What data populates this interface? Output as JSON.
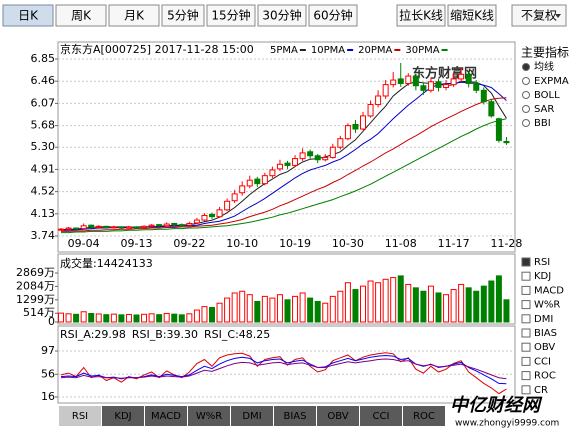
{
  "toolbar": {
    "periods": [
      "日K",
      "周K",
      "月K",
      "5分钟",
      "15分钟",
      "30分钟",
      "60分钟"
    ],
    "zoom": [
      "拉长K线",
      "缩短K线"
    ],
    "adjust": "不复权"
  },
  "sidebar": {
    "title": "主要指标",
    "main_indicators": [
      "均线",
      "EXPMA",
      "BOLL",
      "SAR",
      "BBI"
    ],
    "sub_indicators": [
      "RSI",
      "KDJ",
      "MACD",
      "W%R",
      "DMI",
      "BIAS",
      "OBV",
      "CCI",
      "ROC",
      "CR"
    ]
  },
  "tabs": [
    "RSI",
    "KDJ",
    "MACD",
    "W%R",
    "DMI",
    "BIAS",
    "OBV",
    "CCI",
    "ROC"
  ],
  "watermarks": [
    "东方财富网",
    "中亿财经网",
    "www.zhongyi9999.com"
  ],
  "chart_data": [
    {
      "type": "candlestick",
      "title": "京东方A[000725] 2017-11-28 15:00",
      "up_color": "#ff0000",
      "down_color": "#008000",
      "grid": true,
      "categories": [
        null,
        null,
        null,
        "09-04",
        null,
        null,
        null,
        null,
        null,
        null,
        "09-13",
        null,
        null,
        null,
        null,
        null,
        null,
        "09-22",
        null,
        null,
        null,
        null,
        null,
        null,
        "10-10",
        null,
        null,
        null,
        null,
        null,
        null,
        "10-19",
        null,
        null,
        null,
        null,
        null,
        null,
        "10-30",
        null,
        null,
        null,
        null,
        null,
        null,
        "11-08",
        null,
        null,
        null,
        null,
        null,
        null,
        "11-17",
        null,
        null,
        null,
        null,
        null,
        null,
        "11-28"
      ],
      "ohlc": [
        [
          3.85,
          3.88,
          3.83,
          3.86
        ],
        [
          3.86,
          3.9,
          3.84,
          3.88
        ],
        [
          3.88,
          3.89,
          3.85,
          3.87
        ],
        [
          3.87,
          3.96,
          3.86,
          3.92
        ],
        [
          3.93,
          3.94,
          3.88,
          3.9
        ],
        [
          3.9,
          3.93,
          3.88,
          3.91
        ],
        [
          3.91,
          3.92,
          3.87,
          3.89
        ],
        [
          3.89,
          3.92,
          3.87,
          3.9
        ],
        [
          3.9,
          3.91,
          3.86,
          3.88
        ],
        [
          3.88,
          3.92,
          3.87,
          3.9
        ],
        [
          3.9,
          3.91,
          3.87,
          3.89
        ],
        [
          3.89,
          3.93,
          3.88,
          3.91
        ],
        [
          3.91,
          3.95,
          3.9,
          3.93
        ],
        [
          3.94,
          3.95,
          3.9,
          3.92
        ],
        [
          3.92,
          3.98,
          3.91,
          3.95
        ],
        [
          3.96,
          3.97,
          3.92,
          3.94
        ],
        [
          3.94,
          3.96,
          3.91,
          3.93
        ],
        [
          3.93,
          3.99,
          3.92,
          3.96
        ],
        [
          3.97,
          4.06,
          3.95,
          4.02
        ],
        [
          4.02,
          4.14,
          4.0,
          4.1
        ],
        [
          4.12,
          4.15,
          4.04,
          4.08
        ],
        [
          4.08,
          4.25,
          4.06,
          4.2
        ],
        [
          4.2,
          4.4,
          4.18,
          4.35
        ],
        [
          4.36,
          4.55,
          4.32,
          4.48
        ],
        [
          4.5,
          4.7,
          4.45,
          4.62
        ],
        [
          4.62,
          4.8,
          4.58,
          4.72
        ],
        [
          4.74,
          4.78,
          4.6,
          4.66
        ],
        [
          4.66,
          4.85,
          4.63,
          4.8
        ],
        [
          4.8,
          4.96,
          4.76,
          4.9
        ],
        [
          4.92,
          5.08,
          4.88,
          5.0
        ],
        [
          5.02,
          5.06,
          4.92,
          4.98
        ],
        [
          4.98,
          5.16,
          4.95,
          5.1
        ],
        [
          5.1,
          5.28,
          5.06,
          5.2
        ],
        [
          5.22,
          5.26,
          5.1,
          5.15
        ],
        [
          5.15,
          5.18,
          5.02,
          5.08
        ],
        [
          5.08,
          5.18,
          5.05,
          5.12
        ],
        [
          5.12,
          5.36,
          5.1,
          5.3
        ],
        [
          5.3,
          5.5,
          5.26,
          5.45
        ],
        [
          5.45,
          5.72,
          5.42,
          5.68
        ],
        [
          5.7,
          5.78,
          5.55,
          5.62
        ],
        [
          5.62,
          5.92,
          5.6,
          5.85
        ],
        [
          5.85,
          6.12,
          5.82,
          6.05
        ],
        [
          6.05,
          6.3,
          6.0,
          6.2
        ],
        [
          6.2,
          6.48,
          6.15,
          6.4
        ],
        [
          6.4,
          6.62,
          6.35,
          6.48
        ],
        [
          6.5,
          6.78,
          6.36,
          6.42
        ],
        [
          6.42,
          6.6,
          6.38,
          6.55
        ],
        [
          6.55,
          6.58,
          6.3,
          6.38
        ],
        [
          6.38,
          6.42,
          6.22,
          6.3
        ],
        [
          6.3,
          6.52,
          6.26,
          6.45
        ],
        [
          6.45,
          6.5,
          6.28,
          6.35
        ],
        [
          6.35,
          6.48,
          6.3,
          6.4
        ],
        [
          6.4,
          6.62,
          6.36,
          6.5
        ],
        [
          6.5,
          6.7,
          6.45,
          6.58
        ],
        [
          6.58,
          6.62,
          6.35,
          6.42
        ],
        [
          6.42,
          6.48,
          6.25,
          6.3
        ],
        [
          6.3,
          6.35,
          6.05,
          6.1
        ],
        [
          6.1,
          6.15,
          5.82,
          5.85
        ],
        [
          5.8,
          5.82,
          5.38,
          5.42
        ],
        [
          5.4,
          5.48,
          5.34,
          5.38
        ]
      ],
      "series": [
        {
          "name": "5PMA",
          "color": "#202020",
          "values": [
            3.85,
            3.86,
            3.86,
            3.88,
            3.89,
            3.9,
            3.9,
            3.9,
            3.9,
            3.9,
            3.89,
            3.9,
            3.9,
            3.91,
            3.92,
            3.93,
            3.93,
            3.94,
            3.96,
            3.99,
            4.02,
            4.07,
            4.15,
            4.24,
            4.35,
            4.47,
            4.57,
            4.66,
            4.74,
            4.82,
            4.87,
            4.96,
            5.04,
            5.09,
            5.1,
            5.13,
            5.17,
            5.22,
            5.33,
            5.43,
            5.58,
            5.73,
            5.88,
            6.02,
            6.2,
            6.31,
            6.41,
            6.45,
            6.43,
            6.42,
            6.41,
            6.38,
            6.4,
            6.46,
            6.45,
            6.44,
            6.38,
            6.25,
            6.02,
            5.81
          ]
        },
        {
          "name": "10PMA",
          "color": "#0000cc",
          "values": [
            3.84,
            3.84,
            3.85,
            3.86,
            3.87,
            3.88,
            3.88,
            3.89,
            3.89,
            3.89,
            3.9,
            3.9,
            3.9,
            3.9,
            3.91,
            3.91,
            3.92,
            3.92,
            3.93,
            3.96,
            3.98,
            4.0,
            4.04,
            4.09,
            4.17,
            4.25,
            4.32,
            4.4,
            4.49,
            4.58,
            4.67,
            4.76,
            4.84,
            4.9,
            4.94,
            4.98,
            5.04,
            5.09,
            5.17,
            5.26,
            5.36,
            5.44,
            5.54,
            5.67,
            5.8,
            5.92,
            6.04,
            6.14,
            6.25,
            6.35,
            6.4,
            6.42,
            6.42,
            6.44,
            6.43,
            6.42,
            6.39,
            6.35,
            6.24,
            6.12
          ]
        },
        {
          "name": "20PMA",
          "color": "#cc0000",
          "values": [
            3.82,
            3.82,
            3.83,
            3.83,
            3.84,
            3.84,
            3.85,
            3.85,
            3.86,
            3.86,
            3.87,
            3.87,
            3.88,
            3.88,
            3.89,
            3.89,
            3.9,
            3.9,
            3.91,
            3.92,
            3.93,
            3.95,
            3.97,
            4.0,
            4.03,
            4.08,
            4.12,
            4.16,
            4.21,
            4.27,
            4.32,
            4.38,
            4.44,
            4.5,
            4.56,
            4.61,
            4.68,
            4.74,
            4.82,
            4.89,
            4.97,
            5.04,
            5.12,
            5.2,
            5.27,
            5.35,
            5.43,
            5.5,
            5.58,
            5.66,
            5.73,
            5.8,
            5.86,
            5.93,
            5.99,
            6.05,
            6.1,
            6.14,
            6.16,
            6.17
          ]
        },
        {
          "name": "30PMA",
          "color": "#008000",
          "values": [
            3.8,
            3.8,
            3.81,
            3.81,
            3.82,
            3.82,
            3.82,
            3.83,
            3.83,
            3.84,
            3.84,
            3.85,
            3.85,
            3.86,
            3.86,
            3.87,
            3.87,
            3.88,
            3.88,
            3.89,
            3.9,
            3.91,
            3.92,
            3.94,
            3.96,
            3.98,
            4.01,
            4.04,
            4.07,
            4.11,
            4.14,
            4.18,
            4.22,
            4.26,
            4.3,
            4.34,
            4.38,
            4.43,
            4.48,
            4.53,
            4.59,
            4.65,
            4.72,
            4.79,
            4.86,
            4.93,
            5.0,
            5.07,
            5.14,
            5.21,
            5.28,
            5.35,
            5.42,
            5.49,
            5.55,
            5.62,
            5.68,
            5.73,
            5.77,
            5.8
          ]
        }
      ],
      "ylim": [
        3.74,
        6.85
      ],
      "yticks": [
        3.74,
        4.13,
        4.52,
        4.91,
        {
          "value": 5.3,
          "label": "5.30"
        },
        5.68,
        6.07,
        6.46,
        6.85
      ]
    },
    {
      "type": "bar",
      "title": "成交量:14424133",
      "values": [
        520,
        480,
        450,
        600,
        500,
        470,
        430,
        460,
        420,
        440,
        410,
        450,
        480,
        430,
        500,
        460,
        420,
        480,
        700,
        900,
        850,
        1100,
        1400,
        1700,
        1800,
        1600,
        1200,
        1500,
        1400,
        1600,
        1300,
        1500,
        1700,
        1400,
        1200,
        1100,
        1500,
        1800,
        2300,
        1900,
        2100,
        2400,
        2300,
        2500,
        2600,
        2700,
        2200,
        2000,
        1800,
        2100,
        1700,
        1600,
        1900,
        2200,
        2000,
        1800,
        2100,
        2400,
        2700,
        1300
      ],
      "ylim": [
        0,
        2869
      ],
      "yticks": [
        0,
        {
          "value": 514,
          "label": "514万"
        },
        {
          "value": 1299,
          "label": "1299万"
        },
        {
          "value": 2084,
          "label": "2084万"
        },
        {
          "value": 2869,
          "label": "2869万"
        }
      ]
    },
    {
      "type": "line",
      "legend_labels": [
        "RSI_A:29.98",
        "RSI_B:39.30",
        "RSI_C:48.25"
      ],
      "series": [
        {
          "name": "RSI_A",
          "color": "#e00000",
          "values": [
            55,
            58,
            52,
            68,
            50,
            55,
            45,
            50,
            42,
            52,
            48,
            55,
            60,
            50,
            62,
            55,
            50,
            60,
            75,
            82,
            70,
            85,
            90,
            92,
            93,
            88,
            70,
            82,
            85,
            87,
            72,
            82,
            85,
            70,
            60,
            64,
            80,
            85,
            90,
            80,
            86,
            90,
            92,
            94,
            92,
            78,
            85,
            65,
            58,
            70,
            60,
            65,
            75,
            80,
            60,
            50,
            40,
            32,
            22,
            29.98
          ]
        },
        {
          "name": "RSI_B",
          "color": "#0000ff",
          "values": [
            52,
            53,
            52,
            58,
            53,
            54,
            50,
            51,
            48,
            51,
            50,
            52,
            55,
            52,
            56,
            54,
            52,
            55,
            63,
            70,
            66,
            74,
            80,
            84,
            86,
            84,
            76,
            80,
            82,
            83,
            76,
            79,
            81,
            74,
            68,
            69,
            76,
            80,
            84,
            80,
            83,
            86,
            88,
            89,
            88,
            82,
            84,
            74,
            70,
            74,
            68,
            70,
            74,
            77,
            68,
            62,
            55,
            48,
            40,
            39.3
          ]
        },
        {
          "name": "RSI_C",
          "color": "#800080",
          "values": [
            50,
            51,
            50,
            54,
            51,
            52,
            50,
            50,
            49,
            50,
            50,
            51,
            53,
            51,
            53,
            52,
            51,
            53,
            58,
            63,
            61,
            66,
            71,
            75,
            77,
            76,
            72,
            74,
            76,
            77,
            73,
            75,
            76,
            72,
            68,
            68,
            72,
            75,
            78,
            76,
            78,
            80,
            82,
            83,
            82,
            79,
            80,
            74,
            71,
            73,
            69,
            70,
            72,
            74,
            69,
            65,
            60,
            55,
            50,
            48.25
          ]
        }
      ],
      "ylim": [
        16,
        97
      ],
      "yticks": [
        16,
        56,
        97
      ]
    }
  ]
}
